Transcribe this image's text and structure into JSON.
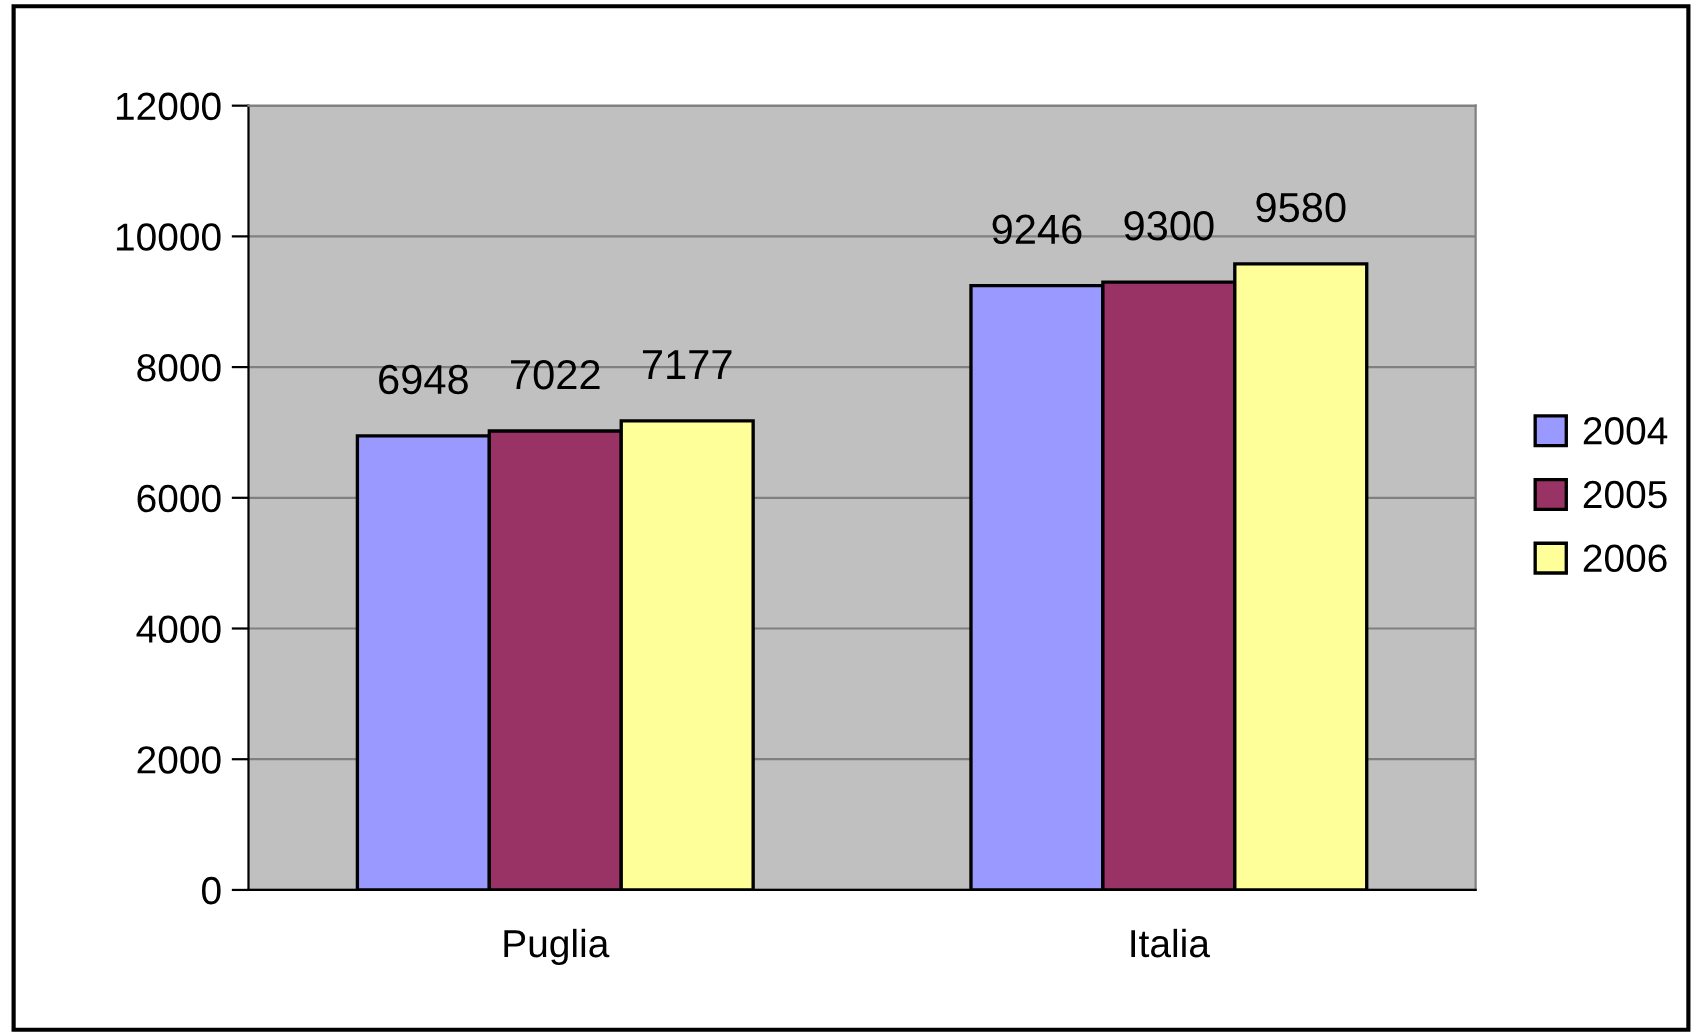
{
  "chart_data": {
    "type": "bar",
    "categories": [
      "Puglia",
      "Italia"
    ],
    "series": [
      {
        "name": "2004",
        "color": "#9999ff",
        "values": [
          6948,
          9246
        ]
      },
      {
        "name": "2005",
        "color": "#993366",
        "values": [
          7022,
          9300
        ]
      },
      {
        "name": "2006",
        "color": "#ffff99",
        "values": [
          7177,
          9580
        ]
      }
    ],
    "ylim": [
      0,
      12000
    ],
    "yticks": [
      0,
      2000,
      4000,
      6000,
      8000,
      10000,
      12000
    ],
    "grid": "y",
    "legend": "right",
    "data_labels": true
  }
}
